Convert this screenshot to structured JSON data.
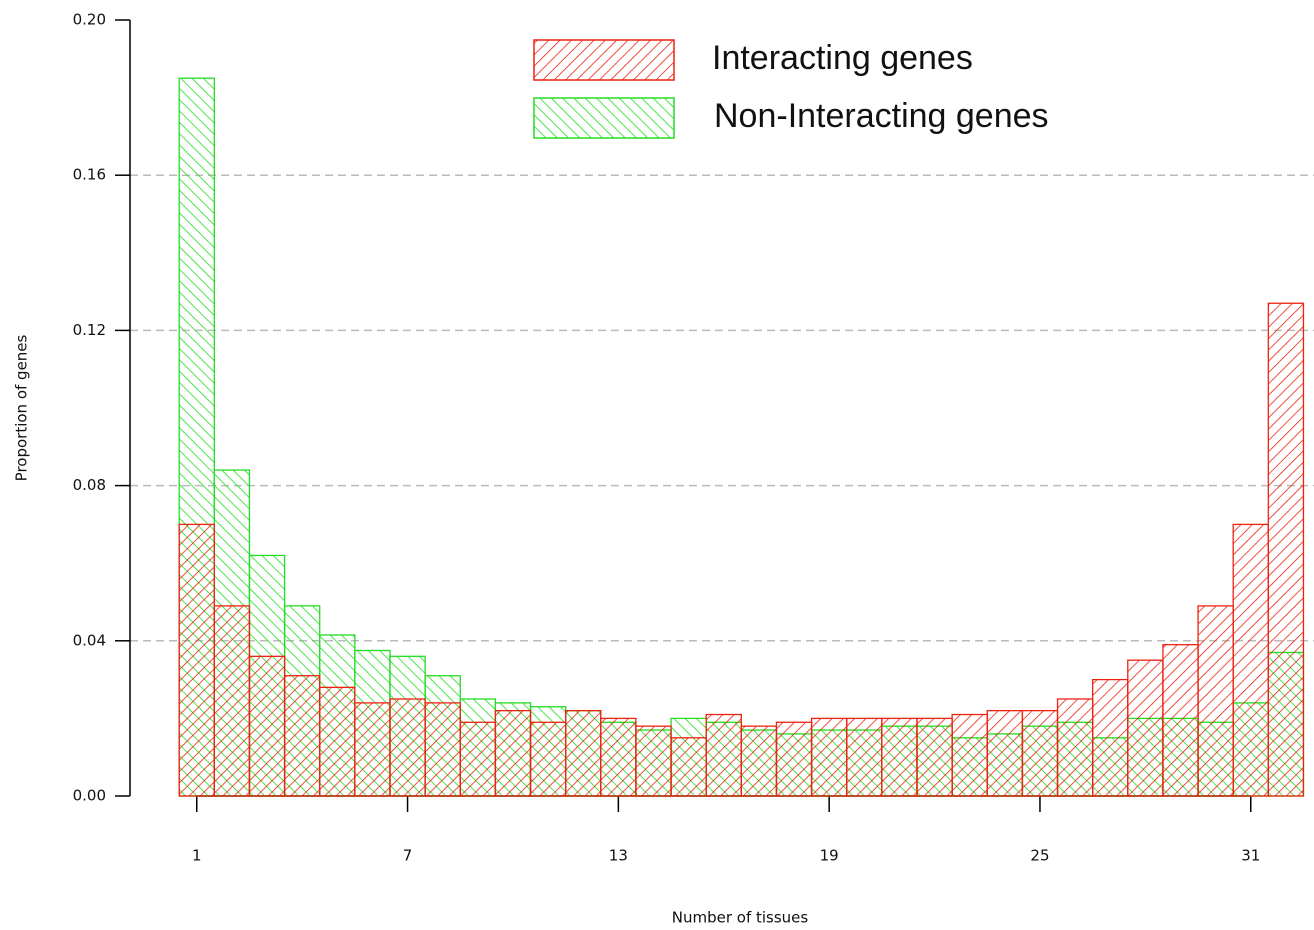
{
  "chart_data": {
    "type": "histogram",
    "x_label": "Number of tissues",
    "y_label": "Proportion of genes",
    "bins": [
      0.5,
      1.5,
      2.5,
      3.5,
      4.5,
      5.5,
      6.5,
      7.5,
      8.5,
      9.5,
      10.5,
      11.5,
      12.5,
      13.5,
      14.5,
      15.5,
      16.5,
      17.5,
      18.5,
      19.5,
      20.5,
      21.5,
      22.5,
      23.5,
      24.5,
      25.5,
      26.5,
      27.5,
      28.5,
      29.5,
      30.5,
      31.5,
      32.5
    ],
    "series": [
      {
        "name": "Non-Interacting genes",
        "color": "#22dd22",
        "values": [
          0.185,
          0.084,
          0.062,
          0.049,
          0.0415,
          0.0375,
          0.036,
          0.031,
          0.025,
          0.024,
          0.023,
          0.022,
          0.019,
          0.017,
          0.02,
          0.019,
          0.017,
          0.016,
          0.017,
          0.017,
          0.018,
          0.018,
          0.015,
          0.016,
          0.018,
          0.019,
          0.015,
          0.02,
          0.02,
          0.019,
          0.024,
          0.037
        ]
      },
      {
        "name": "Interacting genes",
        "color": "#ee2211",
        "values": [
          0.07,
          0.049,
          0.036,
          0.031,
          0.028,
          0.024,
          0.025,
          0.024,
          0.019,
          0.022,
          0.019,
          0.022,
          0.02,
          0.018,
          0.015,
          0.021,
          0.018,
          0.019,
          0.02,
          0.02,
          0.02,
          0.02,
          0.021,
          0.022,
          0.022,
          0.025,
          0.03,
          0.035,
          0.039,
          0.049,
          0.07,
          0.127
        ]
      }
    ],
    "xlim": [
      -0.9,
      32.8
    ],
    "xticks": [
      1,
      7,
      13,
      19,
      25,
      31
    ],
    "ylim": [
      0,
      0.2
    ],
    "yticks": [
      {
        "value": 0,
        "label": "0.00"
      },
      {
        "value": 0.04,
        "label": "0.04"
      },
      {
        "value": 0.08,
        "label": "0.08"
      },
      {
        "value": 0.12,
        "label": "0.12"
      },
      {
        "value": 0.16,
        "label": "0.16"
      },
      {
        "value": 0.2,
        "label": "0.20"
      }
    ],
    "grid": true,
    "legend": "top"
  }
}
